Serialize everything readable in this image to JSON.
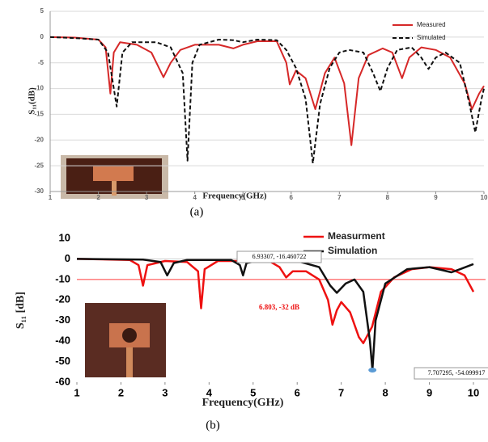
{
  "chart_data": [
    {
      "type": "line",
      "caption": "(a)",
      "x_label": "Frequency(GHz)",
      "y_label": "S₁₁(dB)",
      "xlim": [
        1,
        10
      ],
      "xticks": [
        1,
        2,
        3,
        4,
        5,
        6,
        7,
        8,
        9,
        10
      ],
      "ylim": [
        -30,
        5
      ],
      "yticks": [
        -30,
        -25,
        -20,
        -15,
        -10,
        -5,
        0,
        5
      ],
      "grid": true,
      "legend": "top-right",
      "series": [
        {
          "name": "Measured",
          "color": "#d62828",
          "dash": false,
          "x": [
            1,
            1.5,
            2.0,
            2.15,
            2.25,
            2.32,
            2.45,
            2.8,
            3.1,
            3.35,
            3.5,
            3.7,
            4.0,
            4.5,
            4.8,
            5.0,
            5.3,
            5.7,
            5.9,
            5.97,
            6.1,
            6.3,
            6.5,
            6.7,
            6.9,
            7.1,
            7.25,
            7.4,
            7.6,
            7.9,
            8.1,
            8.3,
            8.45,
            8.7,
            9.0,
            9.3,
            9.6,
            9.75,
            9.9,
            10
          ],
          "values": [
            0,
            -0.1,
            -0.5,
            -2,
            -11,
            -3,
            -1,
            -1.5,
            -3,
            -7.8,
            -5,
            -2.5,
            -1.5,
            -1.5,
            -2.2,
            -1.5,
            -0.8,
            -0.8,
            -5,
            -9.2,
            -6.5,
            -8,
            -14,
            -7,
            -4,
            -9,
            -21,
            -8,
            -3.5,
            -2.2,
            -3,
            -8,
            -4,
            -2,
            -2.5,
            -4,
            -9,
            -14,
            -11,
            -9.5
          ]
        },
        {
          "name": "Simulated",
          "color": "#111111",
          "dash": true,
          "x": [
            1,
            1.5,
            2.0,
            2.2,
            2.38,
            2.5,
            2.7,
            3.2,
            3.5,
            3.75,
            3.85,
            3.95,
            4.1,
            4.5,
            4.8,
            5.0,
            5.3,
            5.7,
            5.9,
            6.1,
            6.3,
            6.45,
            6.6,
            6.8,
            7.0,
            7.2,
            7.5,
            7.7,
            7.85,
            8.0,
            8.2,
            8.5,
            8.7,
            8.85,
            9.0,
            9.2,
            9.5,
            9.7,
            9.82,
            9.95,
            10
          ],
          "values": [
            0,
            -0.2,
            -0.5,
            -3,
            -13.5,
            -3,
            -1,
            -1,
            -2,
            -7,
            -24,
            -5,
            -1.5,
            -0.5,
            -0.6,
            -1,
            -0.5,
            -0.6,
            -2.5,
            -6,
            -12,
            -24.5,
            -13,
            -6,
            -3,
            -2.5,
            -3,
            -7,
            -10.5,
            -6,
            -2.5,
            -2,
            -4,
            -6.2,
            -4,
            -3,
            -5,
            -13,
            -18.5,
            -12,
            -10
          ]
        }
      ]
    },
    {
      "type": "line",
      "caption": "(b)",
      "x_label": "Frequency(GHz)",
      "y_label": "S₁₁ [dB]",
      "xlim": [
        1,
        10
      ],
      "xticks": [
        1,
        2,
        3,
        4,
        5,
        6,
        7,
        8,
        9,
        10
      ],
      "ylim": [
        -60,
        10
      ],
      "yticks": [
        -60,
        -50,
        -40,
        -30,
        -20,
        -10,
        0,
        10
      ],
      "grid": false,
      "legend": "top-center",
      "hlines": [
        {
          "y": -10,
          "color": "#ff3b3b"
        }
      ],
      "markers": [
        {
          "x": 7.707295,
          "y": -54.099917,
          "color": "#5b9bd5"
        }
      ],
      "annotations": [
        "6.93307, -16.460722",
        "6.803, -32 dB",
        "7.707295, -54.099917"
      ],
      "series": [
        {
          "name": "Measurment",
          "color": "#ee1111",
          "dash": false,
          "x": [
            1,
            2.2,
            2.4,
            2.5,
            2.6,
            3.0,
            3.5,
            3.75,
            3.82,
            3.9,
            4.2,
            5.0,
            5.4,
            5.6,
            5.75,
            5.9,
            6.2,
            6.5,
            6.7,
            6.8,
            6.9,
            7.0,
            7.2,
            7.4,
            7.5,
            7.7,
            7.9,
            8.2,
            8.6,
            9.0,
            9.5,
            9.8,
            10
          ],
          "values": [
            0,
            -0.5,
            -3,
            -13,
            -3,
            -1,
            -1.5,
            -6,
            -24,
            -5,
            -1,
            -1,
            -1.5,
            -4,
            -9,
            -6,
            -6,
            -10,
            -20,
            -32,
            -25,
            -21,
            -26,
            -38,
            -41,
            -33,
            -16,
            -9,
            -5,
            -4,
            -5,
            -8,
            -16
          ]
        },
        {
          "name": "Simulation",
          "color": "#111111",
          "dash": false,
          "x": [
            1,
            2.5,
            2.9,
            3.05,
            3.2,
            3.5,
            4.5,
            4.7,
            4.77,
            4.85,
            5.2,
            6.0,
            6.5,
            6.75,
            6.9,
            7.1,
            7.3,
            7.5,
            7.65,
            7.707,
            7.78,
            8.0,
            8.5,
            9.0,
            9.3,
            9.5,
            9.7,
            10
          ],
          "values": [
            0,
            -0.3,
            -1.5,
            -8,
            -2,
            -0.5,
            -0.5,
            -3,
            -8,
            -2,
            -0.5,
            -1,
            -4,
            -13,
            -16.5,
            -12,
            -10,
            -16,
            -40,
            -54,
            -30,
            -12,
            -5,
            -4,
            -5.5,
            -6.5,
            -5,
            -2.5
          ]
        }
      ]
    }
  ]
}
